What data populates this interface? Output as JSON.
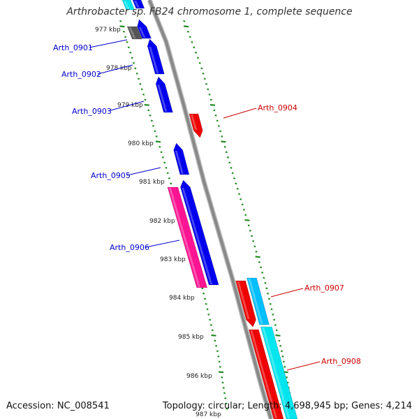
{
  "title": "Arthrobacter sp. FB24 chromosome 1, complete sequence",
  "footer": {
    "accession": "Accession: NC_008541",
    "summary": "Topology: circular; Length: 4,698,945 bp; Genes: 4,214"
  },
  "colors": {
    "forward_cds": "#0000ee",
    "reverse_cds": "#ee0000",
    "magenta_cds": "#ff1493",
    "cyan_cds": "#00e5ee",
    "sky_cds": "#00bfff",
    "gray_feature": "#555555",
    "backbone": "#888888",
    "tick_marks": "#228b22",
    "forward_label": "#0000cc",
    "reverse_label": "#cc0000"
  },
  "scale_labels": [
    "977 kbp",
    "978 kbp",
    "979 kbp",
    "980 kbp",
    "981 kbp",
    "982 kbp",
    "983 kbp",
    "984 kbp",
    "985 kbp",
    "986 kbp",
    "987 kbp"
  ],
  "gene_labels": [
    {
      "name": "Arth_0901",
      "strand": "forward"
    },
    {
      "name": "Arth_0902",
      "strand": "forward"
    },
    {
      "name": "Arth_0903",
      "strand": "forward"
    },
    {
      "name": "Arth_0904",
      "strand": "reverse"
    },
    {
      "name": "Arth_0905",
      "strand": "forward"
    },
    {
      "name": "Arth_0906",
      "strand": "forward"
    },
    {
      "name": "Arth_0907",
      "strand": "reverse"
    },
    {
      "name": "Arth_0908",
      "strand": "reverse"
    }
  ]
}
